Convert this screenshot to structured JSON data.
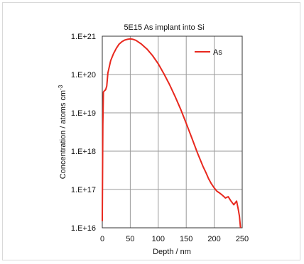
{
  "chart_data": {
    "type": "line",
    "title": "5E15 As implant into Si",
    "xlabel": "Depth / nm",
    "ylabel": "Concentration / atoms cm",
    "ylabel_superscript": "-3",
    "xlim": [
      0,
      250
    ],
    "ylim": [
      1e+16,
      1e+21
    ],
    "yscale": "log",
    "x_ticks": [
      0,
      50,
      100,
      150,
      200,
      250
    ],
    "x_tick_labels": [
      "0",
      "50",
      "100",
      "150",
      "200",
      "250"
    ],
    "y_ticks": [
      1e+16,
      1e+17,
      1e+18,
      1e+19,
      1e+20,
      1e+21
    ],
    "y_tick_labels": [
      "1.E+16",
      "1.E+17",
      "1.E+18",
      "1.E+19",
      "1.E+20",
      "1.E+21"
    ],
    "grid": true,
    "legend_position": "top-right",
    "series": [
      {
        "name": "As",
        "color": "#e8281e",
        "x": [
          0,
          1,
          2,
          4,
          6,
          8,
          10,
          15,
          20,
          25,
          30,
          35,
          40,
          45,
          50,
          55,
          60,
          65,
          70,
          80,
          90,
          100,
          110,
          120,
          130,
          140,
          150,
          160,
          170,
          175,
          180,
          185,
          190,
          195,
          200,
          205,
          210,
          215,
          220,
          225,
          230,
          235,
          240,
          243,
          245,
          247
        ],
        "y": [
          1.5e+16,
          5e+18,
          3.5e+19,
          3.8e+19,
          4e+19,
          5e+19,
          1.1e+20,
          2.3e+20,
          3.5e+20,
          4.8e+20,
          6.2e+20,
          7.2e+20,
          7.9e+20,
          8.3e+20,
          8.5e+20,
          8.3e+20,
          7.8e+20,
          7e+20,
          6.2e+20,
          4.6e+20,
          3.1e+20,
          1.9e+20,
          1.05e+20,
          5.5e+19,
          2.7e+19,
          1.25e+19,
          5.3e+18,
          2.2e+18,
          9e+17,
          6e+17,
          4e+17,
          2.8e+17,
          1.9e+17,
          1.4e+17,
          1.1e+17,
          9e+16,
          8e+16,
          7e+16,
          6e+16,
          6.5e+16,
          5e+16,
          4e+16,
          5e+16,
          3e+16,
          2e+16,
          1e+16
        ]
      }
    ]
  }
}
